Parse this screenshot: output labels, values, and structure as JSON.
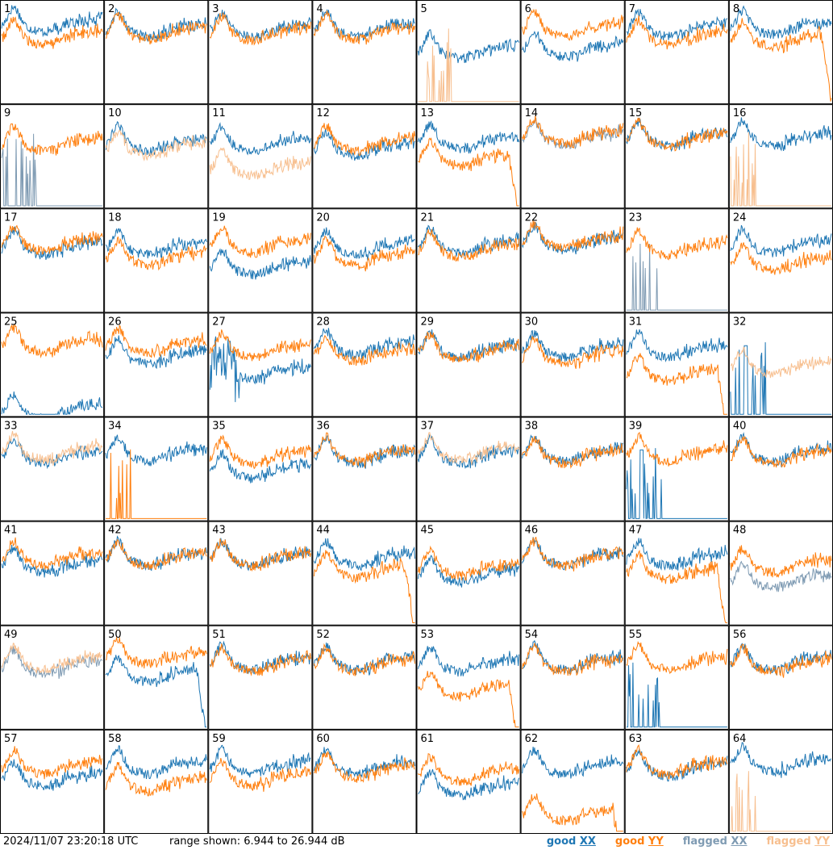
{
  "chart_data": {
    "type": "line",
    "grid": {
      "rows": 8,
      "cols": 8
    },
    "y_range_db": [
      6.944,
      26.944
    ],
    "panels": [
      {
        "n": "1",
        "xx": "good",
        "yy": "good",
        "xx_base": 0.75,
        "yy_base": 0.62,
        "xx_drop": 0.2,
        "yy_drop": 0.01,
        "flag_spikes": []
      },
      {
        "n": "2",
        "xx": "good",
        "yy": "good",
        "xx_base": 0.7,
        "yy_base": 0.67
      },
      {
        "n": "3",
        "xx": "good",
        "yy": "good",
        "xx_base": 0.7,
        "yy_base": 0.66
      },
      {
        "n": "4",
        "xx": "good",
        "yy": "good",
        "xx_base": 0.7,
        "yy_base": 0.67
      },
      {
        "n": "5",
        "xx": "good",
        "yy": "flagged-spikes",
        "xx_base": 0.48,
        "yy_base": 0.0
      },
      {
        "n": "6",
        "xx": "good",
        "yy": "good",
        "xx_base": 0.5,
        "yy_base": 0.7
      },
      {
        "n": "7",
        "xx": "good",
        "yy": "good",
        "xx_base": 0.7,
        "yy_base": 0.62
      },
      {
        "n": "8",
        "xx": "good",
        "yy": "good-drop",
        "xx_base": 0.72,
        "yy_base": 0.6
      },
      {
        "n": "9",
        "xx": "flagged-spikes",
        "yy": "good",
        "xx_base": 0.0,
        "yy_base": 0.6
      },
      {
        "n": "10",
        "xx": "good",
        "yy": "flagged",
        "xx_base": 0.6,
        "yy_base": 0.55
      },
      {
        "n": "11",
        "xx": "good",
        "yy": "flagged",
        "xx_base": 0.6,
        "yy_base": 0.35
      },
      {
        "n": "12",
        "xx": "good",
        "yy": "good",
        "xx_base": 0.55,
        "yy_base": 0.6
      },
      {
        "n": "13",
        "xx": "good",
        "yy": "good-drop",
        "xx_base": 0.62,
        "yy_base": 0.45
      },
      {
        "n": "14",
        "xx": "flagged",
        "yy": "good",
        "xx_base": 0.65,
        "yy_base": 0.67
      },
      {
        "n": "15",
        "xx": "good",
        "yy": "good",
        "xx_base": 0.65,
        "yy_base": 0.64
      },
      {
        "n": "16",
        "xx": "good",
        "yy": "flagged-spikes",
        "xx_base": 0.65,
        "yy_base": 0.0
      },
      {
        "n": "17",
        "xx": "good",
        "yy": "good",
        "xx_base": 0.6,
        "yy_base": 0.64
      },
      {
        "n": "18",
        "xx": "good",
        "yy": "good",
        "xx_base": 0.6,
        "yy_base": 0.5
      },
      {
        "n": "19",
        "xx": "good",
        "yy": "good",
        "xx_base": 0.4,
        "yy_base": 0.62
      },
      {
        "n": "20",
        "xx": "good",
        "yy": "good",
        "xx_base": 0.6,
        "yy_base": 0.5
      },
      {
        "n": "21",
        "xx": "good",
        "yy": "good",
        "xx_base": 0.62,
        "yy_base": 0.58
      },
      {
        "n": "22",
        "xx": "good",
        "yy": "good",
        "xx_base": 0.65,
        "yy_base": 0.67
      },
      {
        "n": "23",
        "xx": "flagged-spikes",
        "yy": "good",
        "xx_base": 0.0,
        "yy_base": 0.6
      },
      {
        "n": "24",
        "xx": "good",
        "yy": "good",
        "xx_base": 0.62,
        "yy_base": 0.45
      },
      {
        "n": "25",
        "xx": "good",
        "yy": "good",
        "xx_base": 0.0,
        "yy_base": 0.67
      },
      {
        "n": "26",
        "xx": "good",
        "yy": "good",
        "xx_base": 0.55,
        "yy_base": 0.66
      },
      {
        "n": "27",
        "xx": "good-noisy",
        "yy": "good",
        "xx_base": 0.4,
        "yy_base": 0.62
      },
      {
        "n": "28",
        "xx": "good",
        "yy": "good",
        "xx_base": 0.64,
        "yy_base": 0.58
      },
      {
        "n": "29",
        "xx": "good",
        "yy": "good",
        "xx_base": 0.62,
        "yy_base": 0.6
      },
      {
        "n": "30",
        "xx": "good",
        "yy": "good",
        "xx_base": 0.62,
        "yy_base": 0.55
      },
      {
        "n": "31",
        "xx": "good",
        "yy": "good-drop",
        "xx_base": 0.62,
        "yy_base": 0.38
      },
      {
        "n": "32",
        "xx": "good-spike",
        "yy": "flagged",
        "xx_base": 0.0,
        "yy_base": 0.45
      },
      {
        "n": "33",
        "xx": "good",
        "yy": "flagged",
        "xx_base": 0.6,
        "yy_base": 0.64
      },
      {
        "n": "34",
        "xx": "good",
        "yy": "good-spikes",
        "xx_base": 0.62,
        "yy_base": 0.0
      },
      {
        "n": "35",
        "xx": "good",
        "yy": "good",
        "xx_base": 0.45,
        "yy_base": 0.6
      },
      {
        "n": "36",
        "xx": "good",
        "yy": "good",
        "xx_base": 0.6,
        "yy_base": 0.62
      },
      {
        "n": "37",
        "xx": "good",
        "yy": "flagged",
        "xx_base": 0.6,
        "yy_base": 0.64
      },
      {
        "n": "38",
        "xx": "good",
        "yy": "good",
        "xx_base": 0.62,
        "yy_base": 0.6
      },
      {
        "n": "39",
        "xx": "good-spike",
        "yy": "good",
        "xx_base": 0.0,
        "yy_base": 0.62
      },
      {
        "n": "40",
        "xx": "good",
        "yy": "good",
        "xx_base": 0.62,
        "yy_base": 0.6
      },
      {
        "n": "41",
        "xx": "good",
        "yy": "good",
        "xx_base": 0.55,
        "yy_base": 0.62
      },
      {
        "n": "42",
        "xx": "good",
        "yy": "good",
        "xx_base": 0.62,
        "yy_base": 0.62
      },
      {
        "n": "43",
        "xx": "good",
        "yy": "good",
        "xx_base": 0.62,
        "yy_base": 0.62
      },
      {
        "n": "44",
        "xx": "good",
        "yy": "good-drop",
        "xx_base": 0.62,
        "yy_base": 0.5
      },
      {
        "n": "45",
        "xx": "good",
        "yy": "good",
        "xx_base": 0.45,
        "yy_base": 0.52
      },
      {
        "n": "46",
        "xx": "good",
        "yy": "good",
        "xx_base": 0.62,
        "yy_base": 0.62
      },
      {
        "n": "47",
        "xx": "good",
        "yy": "good-drop",
        "xx_base": 0.62,
        "yy_base": 0.48
      },
      {
        "n": "48",
        "xx": "flagged",
        "yy": "good",
        "xx_base": 0.4,
        "yy_base": 0.55
      },
      {
        "n": "49",
        "xx": "flagged",
        "yy": "flagged",
        "xx_base": 0.58,
        "yy_base": 0.62
      },
      {
        "n": "50",
        "xx": "good-drop",
        "yy": "good",
        "xx_base": 0.5,
        "yy_base": 0.68
      },
      {
        "n": "51",
        "xx": "good",
        "yy": "good",
        "xx_base": 0.62,
        "yy_base": 0.6
      },
      {
        "n": "52",
        "xx": "good",
        "yy": "good",
        "xx_base": 0.62,
        "yy_base": 0.6
      },
      {
        "n": "53",
        "xx": "good",
        "yy": "good-drop",
        "xx_base": 0.6,
        "yy_base": 0.35
      },
      {
        "n": "54",
        "xx": "good",
        "yy": "good",
        "xx_base": 0.62,
        "yy_base": 0.6
      },
      {
        "n": "55",
        "xx": "good-spikes",
        "yy": "good",
        "xx_base": 0.0,
        "yy_base": 0.62
      },
      {
        "n": "56",
        "xx": "good",
        "yy": "good",
        "xx_base": 0.62,
        "yy_base": 0.6
      },
      {
        "n": "57",
        "xx": "good",
        "yy": "good",
        "xx_base": 0.5,
        "yy_base": 0.62
      },
      {
        "n": "58",
        "xx": "good",
        "yy": "good",
        "xx_base": 0.62,
        "yy_base": 0.45
      },
      {
        "n": "59",
        "xx": "good",
        "yy": "good",
        "xx_base": 0.62,
        "yy_base": 0.5
      },
      {
        "n": "60",
        "xx": "good",
        "yy": "good",
        "xx_base": 0.62,
        "yy_base": 0.58
      },
      {
        "n": "61",
        "xx": "good",
        "yy": "good",
        "xx_base": 0.4,
        "yy_base": 0.55
      },
      {
        "n": "62",
        "xx": "good",
        "yy": "good-drop",
        "xx_base": 0.62,
        "yy_base": 0.15
      },
      {
        "n": "63",
        "xx": "good",
        "yy": "good",
        "xx_base": 0.6,
        "yy_base": 0.62
      },
      {
        "n": "64",
        "xx": "good",
        "yy": "flagged-spikes",
        "xx_base": 0.65,
        "yy_base": 0.0
      }
    ]
  },
  "footer": {
    "timestamp": "2024/11/07 23:20:18 UTC",
    "range_text": "range shown: 6.944 to 26.944 dB",
    "legend": [
      {
        "word": "good",
        "tok": "XX",
        "color": "#1f77b4"
      },
      {
        "word": "good",
        "tok": "YY",
        "color": "#ff7f0e"
      },
      {
        "word": "flagged",
        "tok": "XX",
        "color": "#7f9bb3"
      },
      {
        "word": "flagged",
        "tok": "YY",
        "color": "#f7bf8f"
      }
    ]
  },
  "colors": {
    "good_xx": "#1f77b4",
    "good_yy": "#ff7f0e",
    "flagged_xx": "#7f9bb3",
    "flagged_yy": "#f7bf8f",
    "grid": "#000000"
  }
}
